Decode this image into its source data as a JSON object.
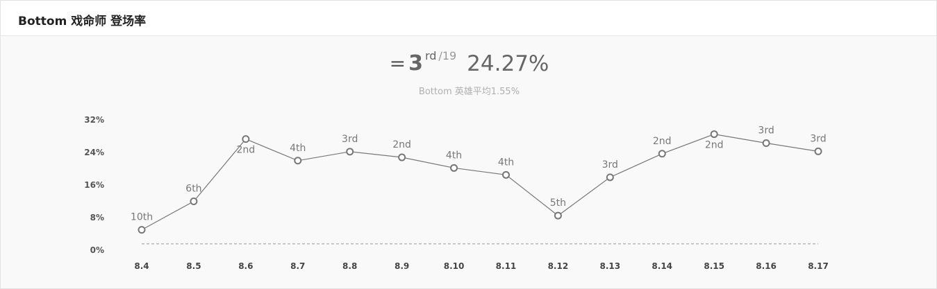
{
  "header": {
    "title": "Bottom 戏命师 登场率"
  },
  "summary": {
    "equals_symbol": "=",
    "rank": "3",
    "rank_suffix": "rd",
    "rank_total": "/19",
    "rate": "24.27%",
    "subtitle_prefix": "Bottom 英雄平均",
    "subtitle_value": "1.55%"
  },
  "colors": {
    "line": "#777777",
    "marker_stroke": "#777777",
    "marker_fill": "#ffffff",
    "average_line": "#999999",
    "background": "#f9f9f9"
  },
  "chart_data": {
    "type": "line",
    "categories": [
      "8.4",
      "8.5",
      "8.6",
      "8.7",
      "8.8",
      "8.9",
      "8.10",
      "8.11",
      "8.12",
      "8.13",
      "8.14",
      "8.15",
      "8.16",
      "8.17"
    ],
    "series": [
      {
        "values": [
          5.0,
          12.0,
          27.3,
          22.0,
          24.2,
          22.8,
          20.2,
          18.5,
          8.5,
          17.9,
          23.7,
          28.5,
          26.3,
          24.27
        ],
        "point_labels": [
          "10th",
          "6th",
          "2nd",
          "4th",
          "3rd",
          "2nd",
          "4th",
          "4th",
          "5th",
          "3rd",
          "2nd",
          "2nd",
          "3rd",
          "3rd"
        ],
        "label_position": [
          "above",
          "above",
          "below",
          "above",
          "above",
          "above",
          "above",
          "above",
          "above",
          "above",
          "above",
          "below",
          "above",
          "above"
        ]
      }
    ],
    "average_line": {
      "value": 1.55,
      "style": "dashed"
    },
    "y_ticks": [
      "0%",
      "8%",
      "16%",
      "24%",
      "32%"
    ],
    "y_tick_values": [
      0,
      8,
      16,
      24,
      32
    ],
    "ylim": [
      0,
      32
    ],
    "grid": false,
    "legend": "none"
  }
}
